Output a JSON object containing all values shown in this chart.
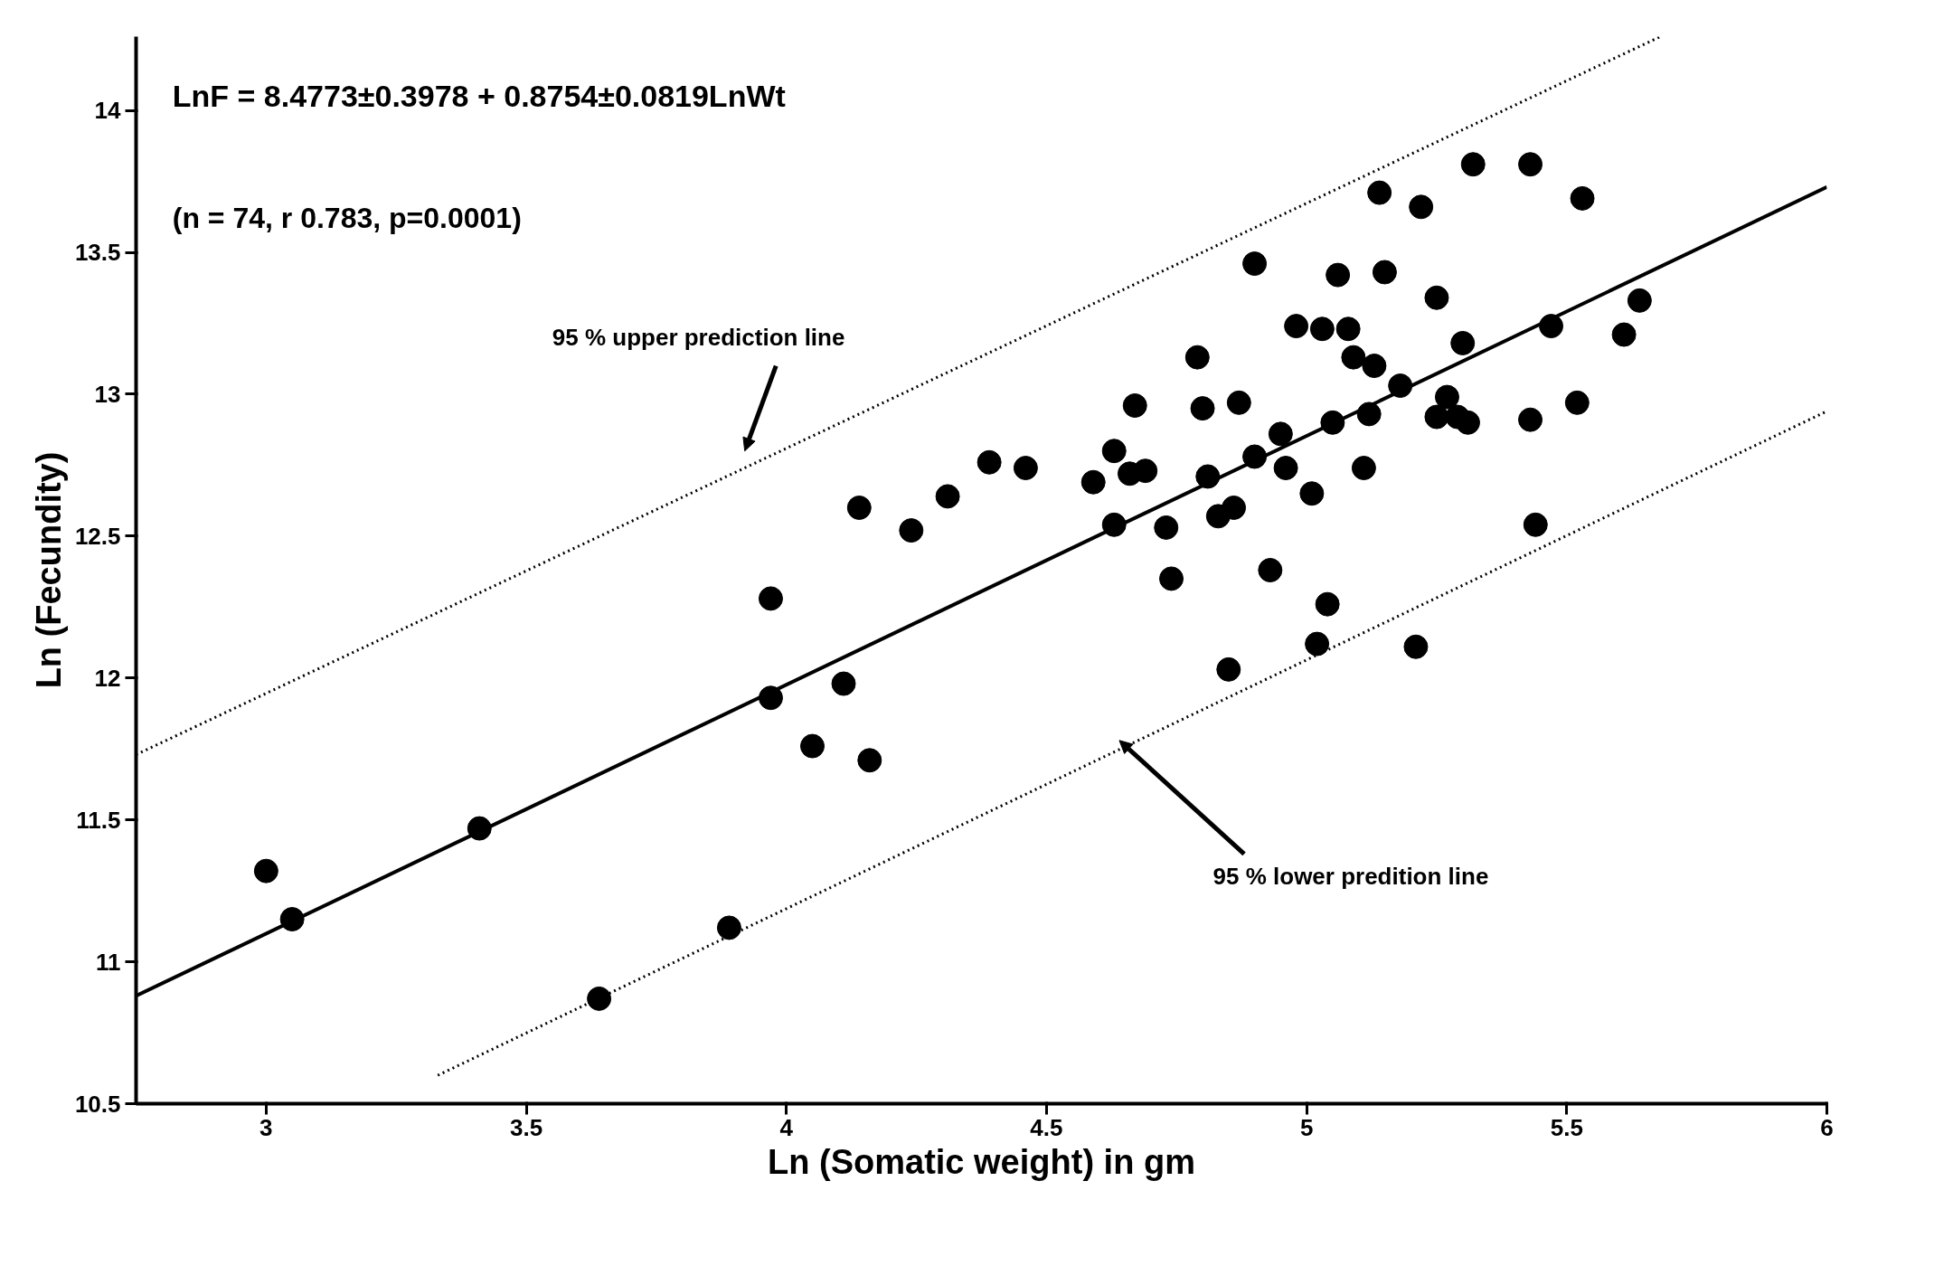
{
  "chart_data": {
    "type": "scatter",
    "xlabel": "Ln (Somatic weight) in gm",
    "ylabel": "Ln (Fecundity)",
    "xlim": [
      2.75,
      6.0
    ],
    "ylim": [
      10.5,
      14.26
    ],
    "xticks": [
      3.0,
      3.5,
      4.0,
      4.5,
      5.0,
      5.5,
      6.0
    ],
    "yticks": [
      10.5,
      11.0,
      11.5,
      12.0,
      12.5,
      13.0,
      13.5,
      14.0
    ],
    "grid": false,
    "annotations": [
      "LnF = 8.4773±0.3978 + 0.8754±0.0819LnWt",
      "(n = 74, r 0.783, p=0.0001)",
      "95 % upper prediction line",
      "95 % lower predition line"
    ],
    "series": [
      {
        "color": "#000000",
        "marker": "circle",
        "x": [
          3.0,
          3.05,
          3.41,
          3.64,
          3.89,
          3.97,
          3.97,
          4.05,
          4.11,
          4.16,
          4.14,
          4.24,
          4.31,
          4.39,
          4.46,
          4.59,
          4.63,
          4.63,
          4.66,
          4.67,
          4.69,
          4.73,
          4.74,
          4.79,
          4.8,
          4.81,
          4.83,
          4.86,
          4.85,
          4.87,
          4.9,
          4.9,
          4.93,
          4.95,
          4.96,
          4.98,
          5.03,
          5.01,
          5.02,
          5.04,
          5.05,
          5.06,
          5.08,
          5.09,
          5.11,
          5.12,
          5.13,
          5.14,
          5.15,
          5.18,
          5.21,
          5.22,
          5.25,
          5.25,
          5.27,
          5.29,
          5.3,
          5.31,
          5.32,
          5.43,
          5.43,
          5.44,
          5.47,
          5.52,
          5.53,
          5.61,
          5.64
        ],
        "values": [
          11.32,
          11.15,
          11.47,
          10.87,
          11.12,
          12.28,
          11.93,
          11.76,
          11.98,
          11.71,
          12.6,
          12.52,
          12.64,
          12.76,
          12.74,
          12.69,
          12.54,
          12.8,
          12.72,
          12.96,
          12.73,
          12.53,
          12.35,
          13.13,
          12.95,
          12.71,
          12.57,
          12.6,
          12.03,
          12.97,
          13.46,
          12.78,
          12.38,
          12.86,
          12.74,
          13.24,
          13.23,
          12.65,
          12.12,
          12.26,
          12.9,
          13.42,
          13.23,
          13.13,
          12.74,
          12.93,
          13.1,
          13.71,
          13.43,
          13.03,
          12.11,
          13.66,
          13.34,
          12.92,
          12.99,
          12.92,
          13.18,
          12.9,
          13.81,
          13.81,
          12.91,
          12.54,
          13.24,
          12.97,
          13.69,
          13.21,
          13.33
        ]
      },
      {
        "type": "line",
        "color": "#000000",
        "line_style": "solid",
        "x": [
          2.75,
          6.0
        ],
        "values": [
          10.88,
          13.73
        ]
      },
      {
        "type": "line",
        "color": "#000000",
        "line_style": "dotted",
        "x": [
          2.75,
          5.68
        ],
        "values": [
          11.73,
          14.26
        ]
      },
      {
        "type": "line",
        "color": "#000000",
        "line_style": "dotted",
        "x": [
          3.33,
          6.0
        ],
        "values": [
          10.6,
          12.94
        ]
      }
    ]
  }
}
